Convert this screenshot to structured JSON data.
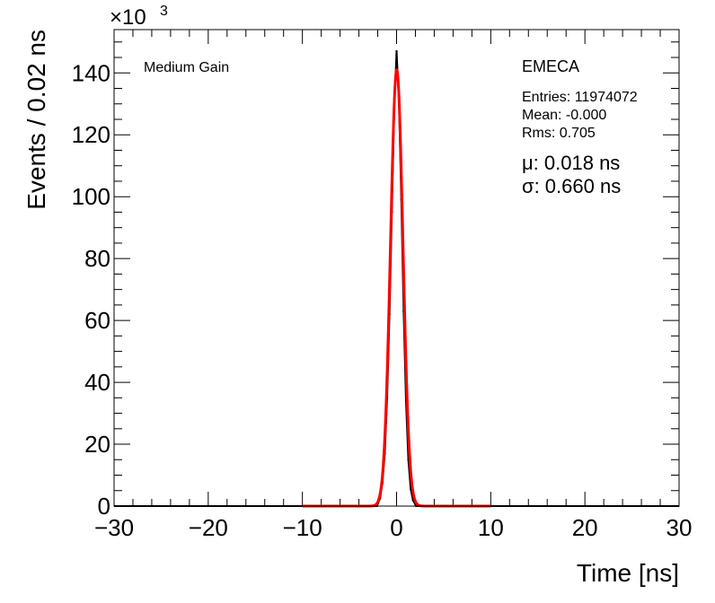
{
  "chart_data": {
    "type": "line",
    "title": "",
    "xlabel": "Time [ns]",
    "ylabel": "Events / 0.02 ns",
    "y_multiplier": "×10",
    "y_multiplier_exp": "3",
    "xlim": [
      -30,
      30
    ],
    "ylim": [
      0,
      154000
    ],
    "x_ticks": [
      -30,
      -20,
      -10,
      0,
      10,
      20,
      30
    ],
    "x_tick_labels": [
      "−30",
      "−20",
      "−10",
      "0",
      "10",
      "20",
      "30"
    ],
    "y_ticks": [
      0,
      20000,
      40000,
      60000,
      80000,
      100000,
      120000,
      140000
    ],
    "y_tick_labels": [
      "0",
      "20",
      "40",
      "60",
      "80",
      "100",
      "120",
      "140"
    ],
    "grid": false,
    "series": [
      {
        "kind": "histogram",
        "color": "#000000",
        "x": [
          -2.0,
          -1.75,
          -1.5,
          -1.25,
          -1.0,
          -0.75,
          -0.5,
          -0.25,
          0.0,
          0.25,
          0.5,
          0.75,
          1.0,
          1.25,
          1.5,
          1.75,
          2.0
        ],
        "values": [
          700,
          2500,
          7500,
          17000,
          35000,
          62000,
          95000,
          128000,
          147000,
          131000,
          99000,
          63000,
          34000,
          15000,
          5500,
          1800,
          500
        ]
      },
      {
        "kind": "gaussian-fit",
        "color": "#ff0000",
        "mean": 0.018,
        "sigma": 0.66,
        "amplitude": 141000,
        "range": [
          -10,
          10
        ]
      }
    ],
    "annotations": {
      "region_label": "Medium Gain",
      "detector": "EMECA",
      "entries": "Entries: 11974072",
      "mean": "Mean: -0.000",
      "rms": "Rms: 0.705",
      "mu": "μ: 0.018 ns",
      "sigma": "σ: 0.660 ns"
    }
  }
}
